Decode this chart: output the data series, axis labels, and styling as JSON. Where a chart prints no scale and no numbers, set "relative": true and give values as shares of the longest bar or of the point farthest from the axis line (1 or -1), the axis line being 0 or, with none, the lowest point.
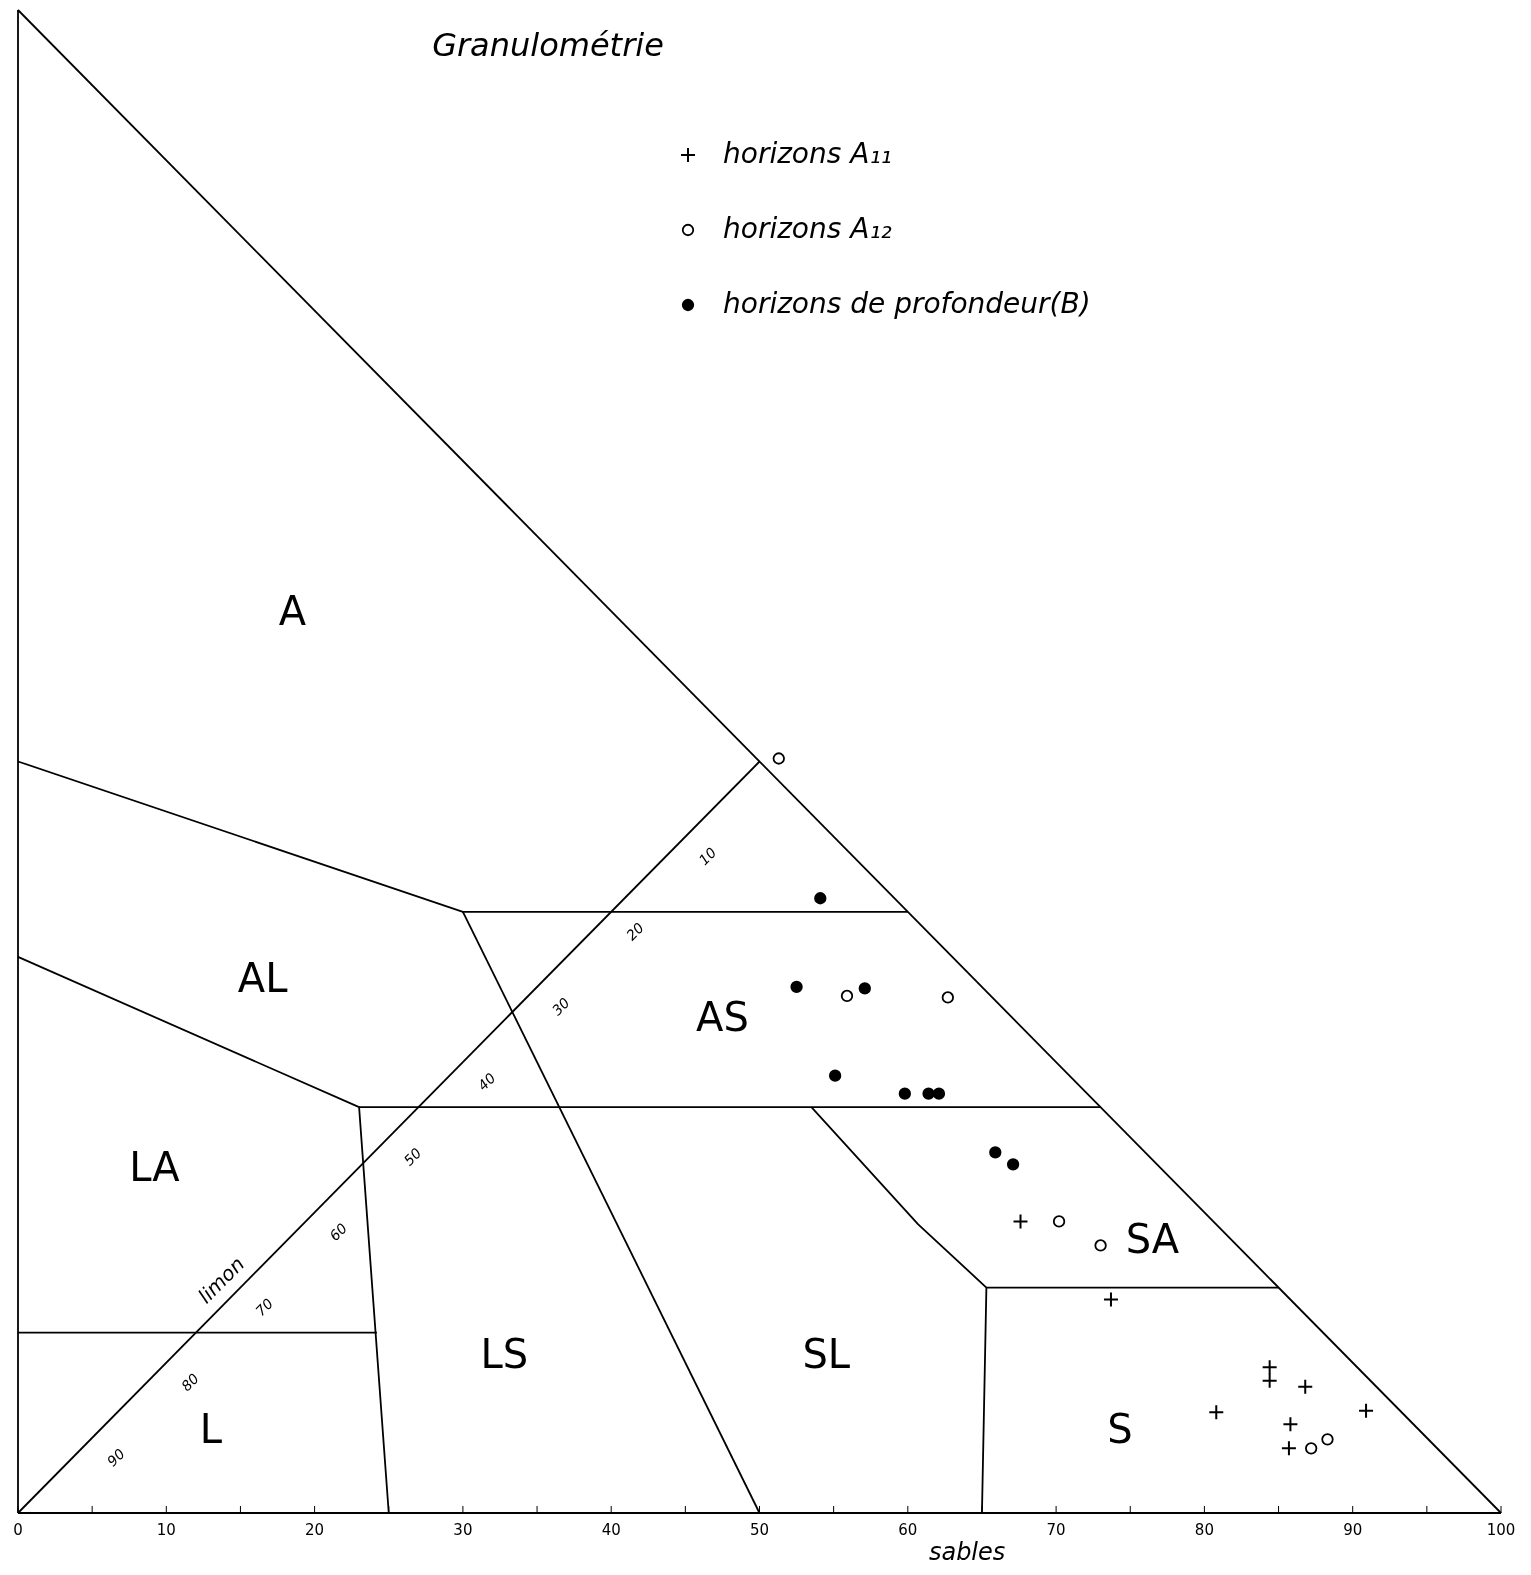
{
  "chart_data": {
    "type": "scatter",
    "title": "Granulométrie",
    "xlabel": "sables",
    "xlim": [
      0,
      100
    ],
    "xticks": [
      0,
      {
        "value": 5,
        "label": null
      },
      10,
      {
        "value": 15,
        "label": null
      },
      20,
      {
        "value": 25,
        "label": null
      },
      30,
      {
        "value": 35,
        "label": null
      },
      40,
      {
        "value": 45,
        "label": null
      },
      50,
      {
        "value": 55,
        "label": null
      },
      60,
      {
        "value": 65,
        "label": null
      },
      70,
      {
        "value": 75,
        "label": null
      },
      80,
      {
        "value": 85,
        "label": null
      },
      90,
      {
        "value": 95,
        "label": null
      },
      100
    ],
    "relative": true,
    "grid": false,
    "legend": "top",
    "series": [
      {
        "type": "line",
        "color": "#000000",
        "marker": "none",
        "x": [
          0,
          100
        ],
        "values": [
          1,
          0
        ]
      },
      {
        "type": "line",
        "color": "#000000",
        "marker": "none",
        "x": [
          0,
          30,
          60
        ],
        "values": [
          0.5,
          0.4,
          0.4
        ]
      },
      {
        "type": "line",
        "color": "#000000",
        "marker": "none",
        "x": [
          30,
          50
        ],
        "values": [
          0.4,
          0
        ]
      },
      {
        "type": "line",
        "color": "#000000",
        "marker": "none",
        "x": [
          0,
          23,
          25
        ],
        "values": [
          0.37,
          0.27,
          0
        ]
      },
      {
        "type": "line",
        "color": "#000000",
        "marker": "none",
        "x": [
          23,
          73
        ],
        "values": [
          0.27,
          0.27
        ]
      },
      {
        "type": "line",
        "color": "#000000",
        "marker": "none",
        "x": [
          53.5,
          60.7,
          65.3,
          65
        ],
        "values": [
          0.27,
          0.192,
          0.15,
          0
        ]
      },
      {
        "type": "line",
        "color": "#000000",
        "marker": "none",
        "x": [
          65.3,
          85
        ],
        "values": [
          0.15,
          0.15
        ]
      },
      {
        "type": "line",
        "color": "#000000",
        "marker": "none",
        "x": [
          0,
          24.2
        ],
        "values": [
          0.12,
          0.12
        ]
      },
      {
        "type": "line",
        "color": "#000000",
        "marker": "none",
        "x": [
          0,
          50
        ],
        "values": [
          0,
          0.5
        ]
      },
      {
        "name": "horizons A₁₁",
        "color": "#000000",
        "marker": "cross",
        "x": [
          67.6,
          73.7,
          84.4,
          84.4,
          86.8,
          80.8,
          85.8,
          90.9,
          85.7
        ],
        "values": [
          0.194,
          0.142,
          0.097,
          0.088,
          0.084,
          0.067,
          0.059,
          0.068,
          0.043
        ]
      },
      {
        "name": "horizons A₁₂",
        "color": "#ffffff",
        "marker": "circle",
        "x": [
          51.3,
          55.9,
          62.7,
          70.2,
          73.0,
          87.2,
          88.3
        ],
        "values": [
          0.502,
          0.344,
          0.343,
          0.194,
          0.178,
          0.043,
          0.049
        ]
      },
      {
        "name": "horizons de profondeur(B)",
        "color": "#000000",
        "marker": "circle",
        "x": [
          54.1,
          52.5,
          57.1,
          55.1,
          59.8,
          61.4,
          62.1,
          65.9,
          67.1
        ],
        "values": [
          0.409,
          0.35,
          0.349,
          0.291,
          0.279,
          0.279,
          0.279,
          0.24,
          0.232
        ]
      }
    ],
    "annotations": [
      "A",
      "AL",
      "LA",
      "L",
      "AS",
      "LS",
      "SL",
      "SA",
      "S",
      "limon",
      "10",
      "20",
      "30",
      "40",
      "50",
      "60",
      "70",
      "80",
      "90"
    ]
  }
}
